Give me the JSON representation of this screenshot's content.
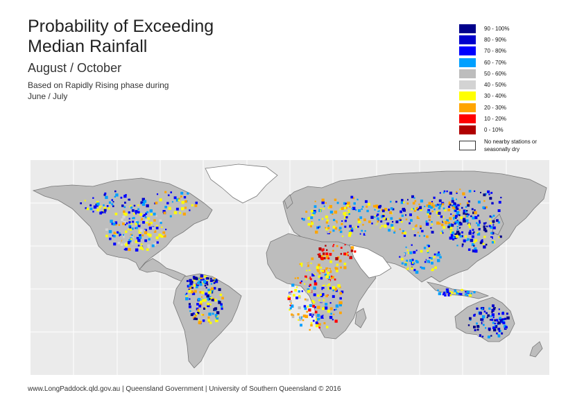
{
  "title": "Probability of Exceeding Median Rainfall",
  "subtitle": "August / October",
  "note": "Based on Rapidly Rising phase during June / July",
  "legend": {
    "items": [
      {
        "label": "90 - 100%",
        "color": "#00008b"
      },
      {
        "label": "80 - 90%",
        "color": "#0000cd"
      },
      {
        "label": "70 - 80%",
        "color": "#0000ff"
      },
      {
        "label": "60 - 70%",
        "color": "#00a0ff"
      },
      {
        "label": "50 - 60%",
        "color": "#bdbdbd"
      },
      {
        "label": "40 - 50%",
        "color": "#d3d3d3"
      },
      {
        "label": "30 - 40%",
        "color": "#ffff00"
      },
      {
        "label": "20 - 30%",
        "color": "#ffa500"
      },
      {
        "label": "10 - 20%",
        "color": "#ff0000"
      },
      {
        "label": "0 - 10%",
        "color": "#b00000"
      }
    ],
    "no_data_label": "No nearby stations or seasonally dry",
    "no_data_color": "#ffffff"
  },
  "map": {
    "ocean_color": "#ebebeb",
    "grid_color": "#ffffff",
    "coastline_color": "#777777"
  },
  "footer": "www.LongPaddock.qld.gov.au | Queensland Government | University of Southern Queensland © 2016"
}
